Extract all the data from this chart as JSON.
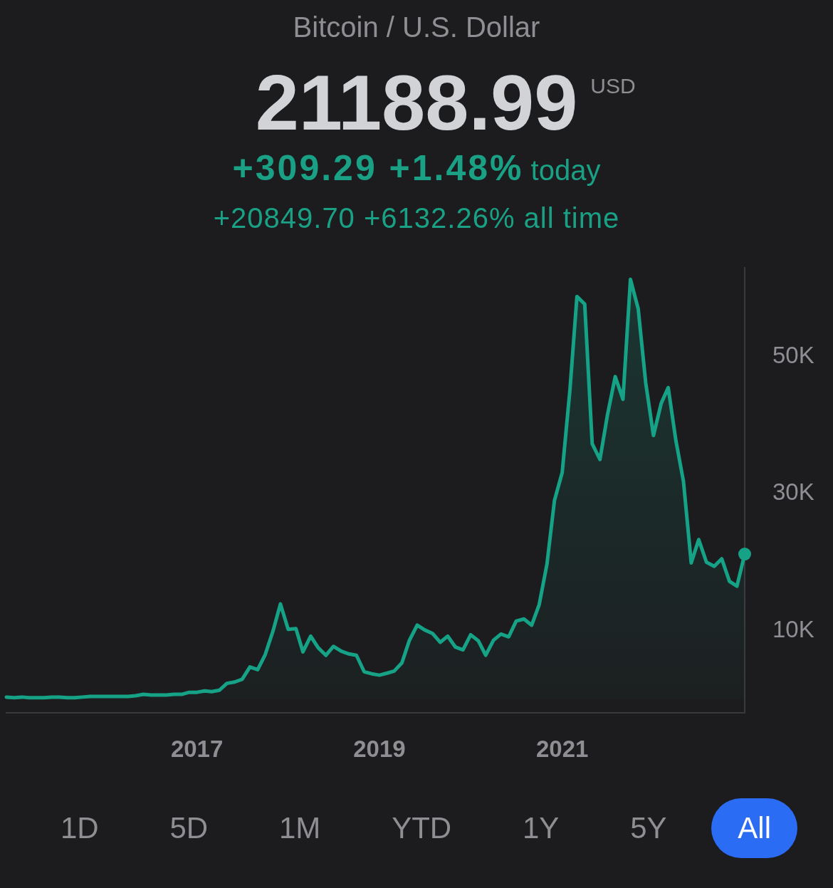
{
  "chart_data": {
    "type": "area",
    "title": "Bitcoin / U.S. Dollar",
    "subtitle": "21188.99$^{USD}$",
    "annotations": [
      "+309.29 +1.48%",
      "today",
      "+20849.70 +6132.26% all time",
      "1D",
      "5D",
      "1M",
      "YTD",
      "1Y",
      "5Y",
      "All"
    ],
    "x": [
      "2014-12",
      "2015-01",
      "2015-02",
      "2015-03",
      "2015-04",
      "2015-05",
      "2015-06",
      "2015-07",
      "2015-08",
      "2015-09",
      "2015-10",
      "2015-11",
      "2015-12",
      "2016-01",
      "2016-02",
      "2016-03",
      "2016-04",
      "2016-05",
      "2016-06",
      "2016-07",
      "2016-08",
      "2016-09",
      "2016-10",
      "2016-11",
      "2016-12",
      "2017-01",
      "2017-02",
      "2017-03",
      "2017-04",
      "2017-05",
      "2017-06",
      "2017-07",
      "2017-08",
      "2017-09",
      "2017-10",
      "2017-11",
      "2017-12",
      "2018-01",
      "2018-02",
      "2018-03",
      "2018-04",
      "2018-05",
      "2018-06",
      "2018-07",
      "2018-08",
      "2018-09",
      "2018-10",
      "2018-11",
      "2018-12",
      "2019-01",
      "2019-02",
      "2019-03",
      "2019-04",
      "2019-05",
      "2019-06",
      "2019-07",
      "2019-08",
      "2019-09",
      "2019-10",
      "2019-11",
      "2019-12",
      "2020-01",
      "2020-02",
      "2020-03",
      "2020-04",
      "2020-05",
      "2020-06",
      "2020-07",
      "2020-08",
      "2020-09",
      "2020-10",
      "2020-11",
      "2020-12",
      "2021-01",
      "2021-02",
      "2021-03",
      "2021-04",
      "2021-05",
      "2021-06",
      "2021-07",
      "2021-08",
      "2021-09",
      "2021-10",
      "2021-11",
      "2021-12",
      "2022-01",
      "2022-02",
      "2022-03",
      "2022-04",
      "2022-05",
      "2022-06",
      "2022-07",
      "2022-08",
      "2022-09",
      "2022-10",
      "2022-11",
      "2022-12",
      "2023-01"
    ],
    "series": [
      {
        "color": "#16a286",
        "values": [
          300,
          200,
          300,
          200,
          200,
          200,
          300,
          300,
          200,
          200,
          300,
          400,
          400,
          400,
          400,
          400,
          400,
          500,
          700,
          600,
          600,
          600,
          700,
          700,
          1000,
          1000,
          1200,
          1100,
          1300,
          2300,
          2500,
          2900,
          4700,
          4300,
          6500,
          9900,
          13900,
          10200,
          10300,
          6900,
          9200,
          7500,
          6400,
          7700,
          7000,
          6600,
          6400,
          4000,
          3700,
          3500,
          3800,
          4100,
          5300,
          8600,
          10800,
          10100,
          9600,
          8300,
          9200,
          7600,
          7200,
          9400,
          8500,
          6400,
          8600,
          9500,
          9100,
          11400,
          11700,
          10800,
          13800,
          19700,
          29000,
          33100,
          45200,
          58800,
          57700,
          37300,
          35000,
          41500,
          47100,
          43800,
          61300,
          57000,
          46200,
          38500,
          43200,
          45500,
          37700,
          31800,
          19900,
          23300,
          20000,
          19400,
          20500,
          17200,
          16500,
          21188.99
        ]
      },
      {
        "type": "scatter",
        "x": [
          "2023-01"
        ],
        "values": [
          21188.99
        ],
        "color": "#16a286",
        "marker": "circle"
      }
    ],
    "xlim": [
      "2014-12",
      "2023-01"
    ],
    "xticks": [
      "2017",
      "2019",
      "2021"
    ],
    "ylim": [
      -2000,
      63000
    ],
    "yticks": [
      {
        "value": 10000,
        "label": "10K"
      },
      {
        "value": 30000,
        "label": "30K"
      },
      {
        "value": 50000,
        "label": "50K"
      }
    ]
  }
}
